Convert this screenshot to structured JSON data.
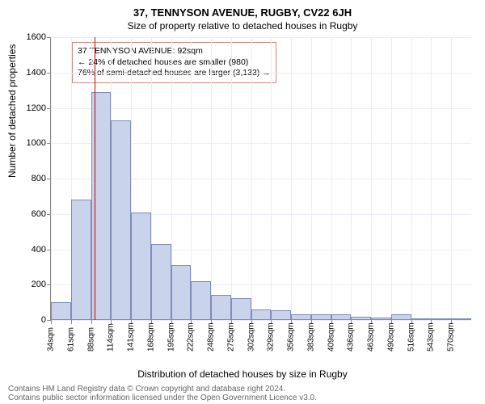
{
  "chart": {
    "type": "histogram",
    "title": "37, TENNYSON AVENUE, RUGBY, CV22 6JH",
    "subtitle": "Size of property relative to detached houses in Rugby",
    "y_axis": {
      "label": "Number of detached properties",
      "min": 0,
      "max": 1600,
      "ticks": [
        0,
        200,
        400,
        600,
        800,
        1000,
        1200,
        1400,
        1600
      ]
    },
    "x_axis": {
      "label": "Distribution of detached houses by size in Rugby",
      "ticks": [
        "34sqm",
        "61sqm",
        "88sqm",
        "114sqm",
        "141sqm",
        "168sqm",
        "195sqm",
        "222sqm",
        "248sqm",
        "275sqm",
        "302sqm",
        "329sqm",
        "356sqm",
        "383sqm",
        "409sqm",
        "436sqm",
        "463sqm",
        "490sqm",
        "516sqm",
        "543sqm",
        "570sqm"
      ]
    },
    "bars": {
      "heights": [
        100,
        680,
        1290,
        1130,
        610,
        430,
        310,
        220,
        140,
        125,
        60,
        55,
        30,
        30,
        30,
        18,
        12,
        30,
        8,
        5,
        5
      ],
      "fill": "#c9d3ec",
      "stroke": "#7f8db7",
      "width_fraction": 1.0
    },
    "marker": {
      "position_value": "92",
      "color": "#cc0000"
    },
    "info_box": {
      "lines": [
        "37 TENNYSON AVENUE: 92sqm",
        "← 24% of detached houses are smaller (980)",
        "76% of semi-detached houses are larger (3,133) →"
      ],
      "border_color": "#cc8888",
      "background": "#ffffff"
    },
    "grid_color": "#ececf7",
    "credit": [
      "Contains HM Land Registry data © Crown copyright and database right 2024.",
      "Contains public sector information licensed under the Open Government Licence v3.0."
    ]
  }
}
